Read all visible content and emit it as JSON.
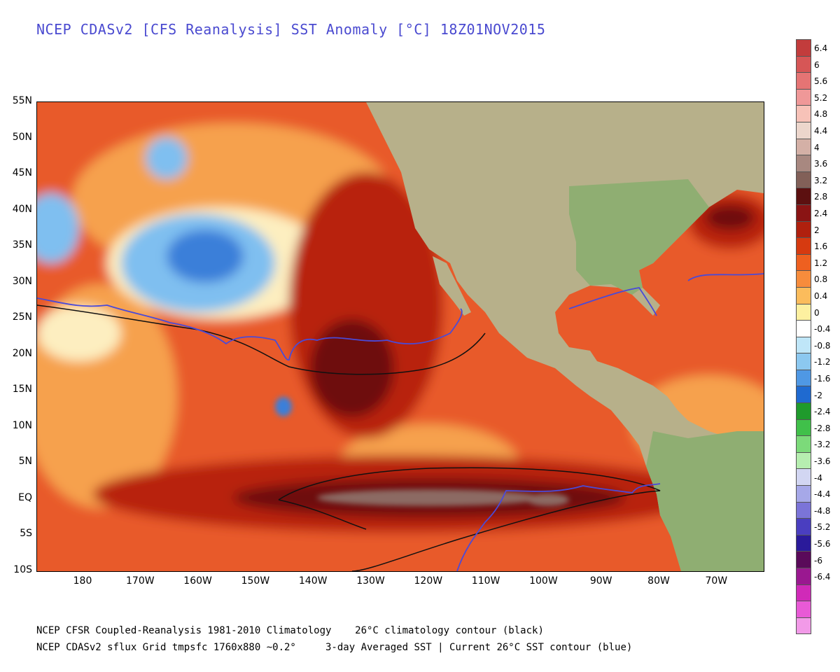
{
  "title": "NCEP CDASv2 [CFS Reanalysis] SST Anomaly [°C] 18Z01NOV2015",
  "map": {
    "lat_labels": [
      "55N",
      "50N",
      "45N",
      "40N",
      "35N",
      "30N",
      "25N",
      "20N",
      "15N",
      "10N",
      "5N",
      "EQ",
      "5S",
      "10S"
    ],
    "lon_labels": [
      "180",
      "170W",
      "160W",
      "150W",
      "140W",
      "130W",
      "120W",
      "110W",
      "100W",
      "90W",
      "80W",
      "70W"
    ],
    "colors": {
      "ocean_warm": "#e85a2a",
      "ocean_hot": "#b8220e",
      "ocean_extreme": "#6e0a0a",
      "ocean_max": "#8c6a64",
      "ocean_mild": "#f6a14e",
      "ocean_neutral": "#fdeec0",
      "ocean_cool": "#7fbff0",
      "ocean_cold": "#3a7fd9",
      "land": "#b7b08a",
      "land_green": "#8fae72",
      "contour_climatology": "#111111",
      "contour_current": "#4a4ad8"
    }
  },
  "colorbar": {
    "levels": [
      {
        "label": "6.4",
        "color": "#c23c3c"
      },
      {
        "label": "6",
        "color": "#d65656"
      },
      {
        "label": "5.6",
        "color": "#e57474"
      },
      {
        "label": "5.2",
        "color": "#ef9898"
      },
      {
        "label": "4.8",
        "color": "#f7c2b8"
      },
      {
        "label": "4.4",
        "color": "#ecd6cc"
      },
      {
        "label": "4",
        "color": "#d4b0a6"
      },
      {
        "label": "3.6",
        "color": "#a88880"
      },
      {
        "label": "3.2",
        "color": "#826058"
      },
      {
        "label": "2.8",
        "color": "#5c1010"
      },
      {
        "label": "2.4",
        "color": "#8a1414"
      },
      {
        "label": "2",
        "color": "#b0200e"
      },
      {
        "label": "1.6",
        "color": "#d63a10"
      },
      {
        "label": "1.2",
        "color": "#ee6020"
      },
      {
        "label": "0.8",
        "color": "#f78c3c"
      },
      {
        "label": "0.4",
        "color": "#fbbc5c"
      },
      {
        "label": "0",
        "color": "#fdf0a0"
      },
      {
        "label": "-0.4",
        "color": "#ffffff"
      },
      {
        "label": "-0.8",
        "color": "#bfe6f8"
      },
      {
        "label": "-1.2",
        "color": "#8cc8f0"
      },
      {
        "label": "-1.6",
        "color": "#4f98e4"
      },
      {
        "label": "-2",
        "color": "#1f6ad0"
      },
      {
        "label": "-2.4",
        "color": "#1f9a2c"
      },
      {
        "label": "-2.8",
        "color": "#40c04a"
      },
      {
        "label": "-3.2",
        "color": "#7cda7a"
      },
      {
        "label": "-3.6",
        "color": "#b6eeb0"
      },
      {
        "label": "-4",
        "color": "#d2d6f2"
      },
      {
        "label": "-4.4",
        "color": "#a6a8e8"
      },
      {
        "label": "-4.8",
        "color": "#7b74d8"
      },
      {
        "label": "-5.2",
        "color": "#4a3ec0"
      },
      {
        "label": "-5.6",
        "color": "#2a1a9a"
      },
      {
        "label": "-6",
        "color": "#5a0a5a"
      },
      {
        "label": "-6.4",
        "color": "#9a1890"
      },
      {
        "label": "",
        "color": "#d02ab8"
      },
      {
        "label": "",
        "color": "#e85ad6"
      },
      {
        "label": "",
        "color": "#f29ae8"
      }
    ]
  },
  "footer": {
    "line1": "NCEP CFSR Coupled-Reanalysis 1981-2010 Climatology    26°C climatology contour (black)",
    "line2": "NCEP CDASv2 sflux Grid tmpsfc 1760x880 ~0.2°     3-day Averaged SST | Current 26°C SST contour (blue)"
  }
}
